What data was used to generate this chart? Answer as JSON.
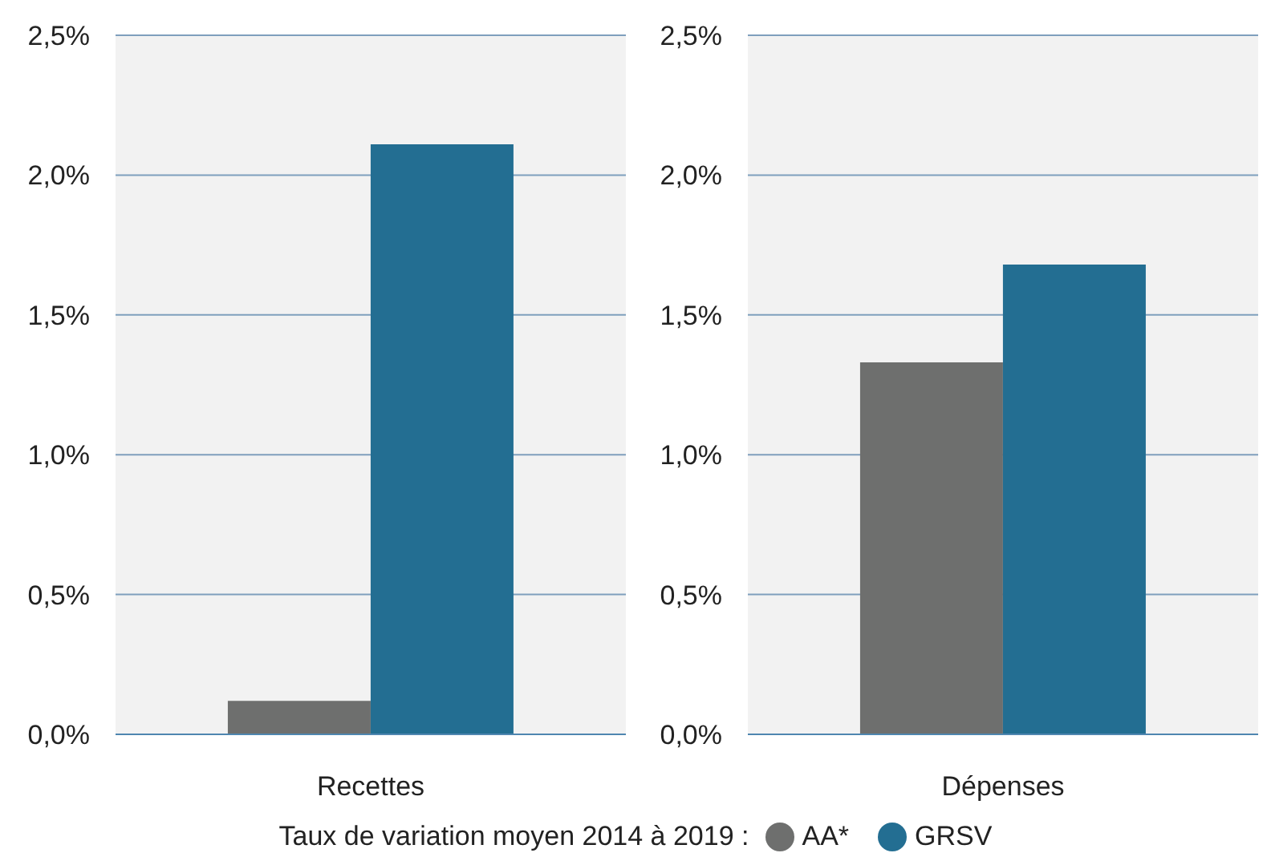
{
  "chart_data": [
    {
      "type": "bar",
      "categories": [
        "Recettes"
      ],
      "series": [
        {
          "name": "AA*",
          "color": "#6e6f6e",
          "values": [
            0.12
          ]
        },
        {
          "name": "GRSV",
          "color": "#236e92",
          "values": [
            2.11
          ]
        }
      ],
      "ylim": [
        0,
        2.5
      ],
      "yticks": [
        {
          "value": 0,
          "label": "0,0%"
        },
        {
          "value": 0.5,
          "label": "0,5%"
        },
        {
          "value": 1,
          "label": "1,0%"
        },
        {
          "value": 1.5,
          "label": "1,5%"
        },
        {
          "value": 2,
          "label": "2,0%"
        },
        {
          "value": 2.5,
          "label": "2,5%"
        }
      ],
      "grid": "y",
      "legend": "bottom",
      "legend_title": "Taux de variation moyen 2014 à 2019 :"
    },
    {
      "type": "bar",
      "categories": [
        "Dépenses"
      ],
      "series": [
        {
          "color": "#6e6f6e",
          "values": [
            1.33
          ]
        },
        {
          "color": "#236e92",
          "values": [
            1.68
          ]
        }
      ],
      "ylim": [
        0,
        2.5
      ],
      "yticks": [
        {
          "value": 0,
          "label": "0,0%"
        },
        {
          "value": 0.5,
          "label": "0,5%"
        },
        {
          "value": 1,
          "label": "1,0%"
        },
        {
          "value": 1.5,
          "label": "1,5%"
        },
        {
          "value": 2,
          "label": "2,0%"
        },
        {
          "value": 2.5,
          "label": "2,5%"
        }
      ],
      "grid": "y"
    }
  ]
}
